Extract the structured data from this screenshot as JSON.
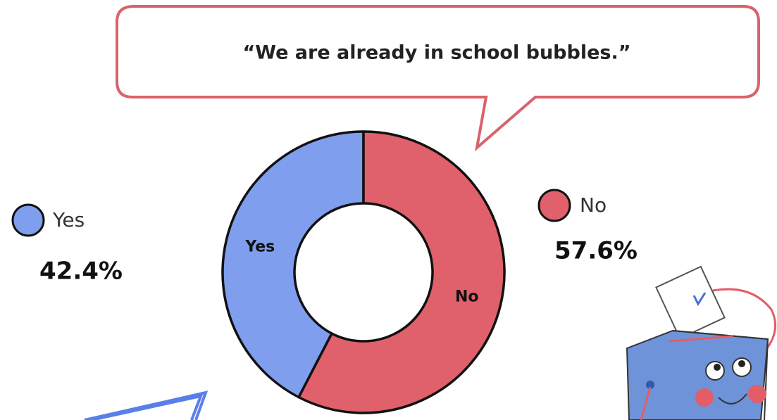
{
  "chart_data": {
    "type": "donut",
    "annotation": "“We are already in school bubbles.”",
    "categories": [
      "Yes",
      "No"
    ],
    "values": [
      42.4,
      57.6
    ],
    "value_labels": [
      "42.4%",
      "57.6%"
    ],
    "colors": [
      "#7f9fee",
      "#e0616b"
    ]
  }
}
